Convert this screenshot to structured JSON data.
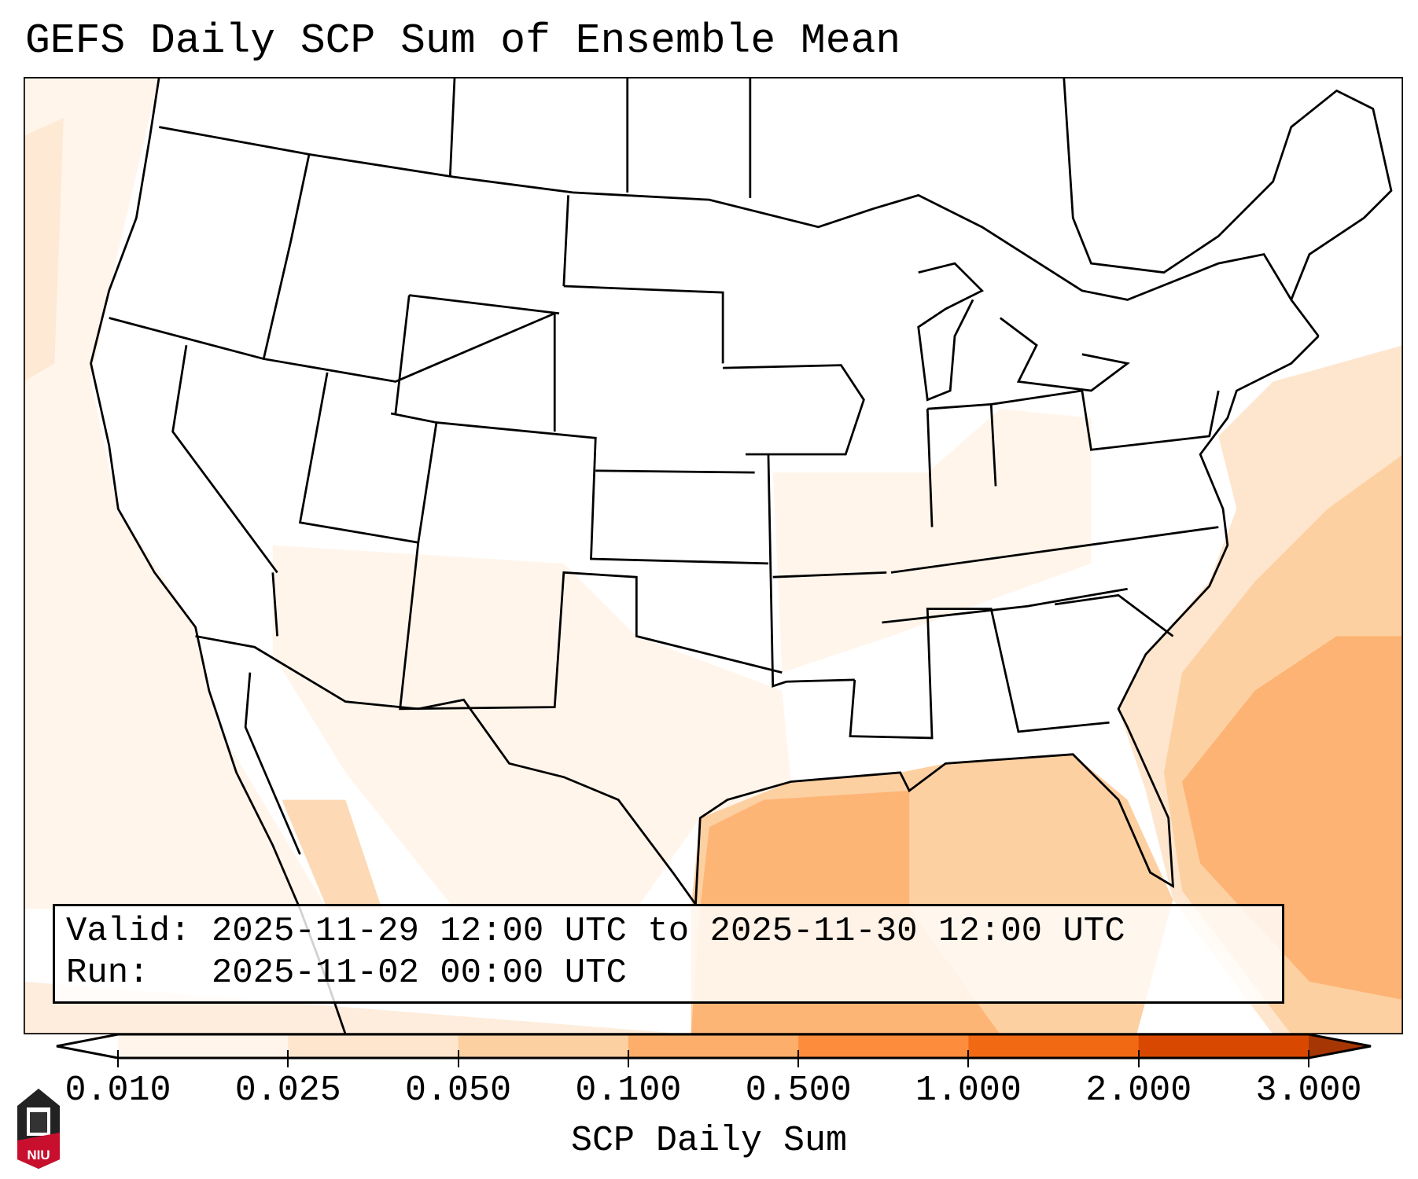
{
  "title": "GEFS Daily SCP Sum of Ensemble Mean",
  "info": {
    "valid_line": "Valid: 2025-11-29 12:00 UTC to 2025-11-30 12:00 UTC",
    "run_line": "Run:   2025-11-02 00:00 UTC"
  },
  "colorbar": {
    "label": "SCP Daily Sum",
    "ticks": [
      "0.010",
      "0.025",
      "0.050",
      "0.100",
      "0.500",
      "1.000",
      "2.000",
      "3.000"
    ],
    "colors": [
      "#fff5eb",
      "#fee6ce",
      "#fdd0a2",
      "#fdae6b",
      "#fd8d3c",
      "#f16913",
      "#d94801",
      "#a63603"
    ],
    "under_color": "#ffffff",
    "extend": "both"
  },
  "logo": {
    "text": "NIU"
  }
}
